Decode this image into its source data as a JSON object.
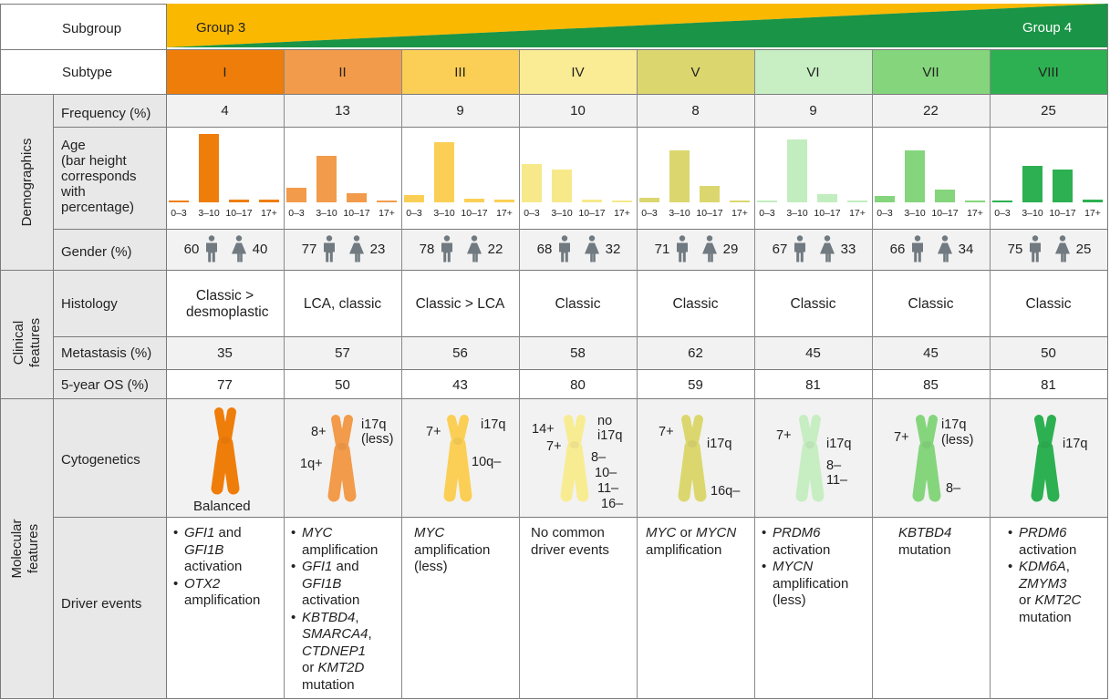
{
  "header": {
    "subgroup_label": "Subgroup",
    "subtype_label": "Subtype",
    "group_left": "Group 3",
    "group_right": "Group 4"
  },
  "subtypes": [
    "I",
    "II",
    "III",
    "IV",
    "V",
    "VI",
    "VII",
    "VIII"
  ],
  "subtype_colors": [
    "#ef7d0a",
    "#f29b4a",
    "#fbcf55",
    "#faeb95",
    "#dbd76e",
    "#c8efc4",
    "#85d57c",
    "#2db051"
  ],
  "group_colors": {
    "group3": "#fbb800",
    "group4": "#1a9446"
  },
  "sections": {
    "demographics": "Demographics",
    "clinical": "Clinical features",
    "molecular": "Molecular features"
  },
  "row_labels": {
    "frequency": "Frequency (%)",
    "age": "Age (bar height corresponds with percentage)",
    "gender": "Gender (%)",
    "histology": "Histology",
    "metastasis": "Metastasis (%)",
    "os": "5-year OS (%)",
    "cytogenetics": "Cytogenetics",
    "driver": "Driver events"
  },
  "frequency": [
    "4",
    "13",
    "9",
    "10",
    "8",
    "9",
    "22",
    "25"
  ],
  "age_bins": [
    "0–3",
    "3–10",
    "10–17",
    "17+"
  ],
  "chart_data": {
    "type": "bar",
    "title": "Age (bar height corresponds with percentage)",
    "categories": [
      "0–3",
      "3–10",
      "10–17",
      "17+"
    ],
    "series": [
      {
        "name": "I",
        "values": [
          2,
          88,
          4,
          4
        ]
      },
      {
        "name": "II",
        "values": [
          19,
          60,
          12,
          2
        ]
      },
      {
        "name": "III",
        "values": [
          9,
          78,
          5,
          3
        ]
      },
      {
        "name": "IV",
        "values": [
          49,
          42,
          3,
          2
        ]
      },
      {
        "name": "V",
        "values": [
          6,
          67,
          21,
          2
        ]
      },
      {
        "name": "VI",
        "values": [
          2,
          81,
          10,
          2
        ]
      },
      {
        "name": "VII",
        "values": [
          8,
          67,
          16,
          2
        ]
      },
      {
        "name": "VIII",
        "values": [
          2,
          47,
          42,
          4
        ]
      }
    ]
  },
  "gender": [
    {
      "male": "60",
      "female": "40"
    },
    {
      "male": "77",
      "female": "23"
    },
    {
      "male": "78",
      "female": "22"
    },
    {
      "male": "68",
      "female": "32"
    },
    {
      "male": "71",
      "female": "29"
    },
    {
      "male": "67",
      "female": "33"
    },
    {
      "male": "66",
      "female": "34"
    },
    {
      "male": "75",
      "female": "25"
    }
  ],
  "histology": [
    "Classic > desmoplastic",
    "LCA, classic",
    "Classic > LCA",
    "Classic",
    "Classic",
    "Classic",
    "Classic",
    "Classic"
  ],
  "metastasis": [
    "35",
    "57",
    "56",
    "58",
    "62",
    "45",
    "45",
    "50"
  ],
  "os": [
    "77",
    "50",
    "43",
    "80",
    "59",
    "81",
    "85",
    "81"
  ],
  "cytogenetics": {
    "I": {
      "balanced": "Balanced"
    },
    "II": {
      "a": "8+",
      "b": "1q+",
      "c": "i17q",
      "d": "(less)"
    },
    "III": {
      "a": "7+",
      "b": "i17q",
      "c": "10q–"
    },
    "IV": {
      "a": "14+",
      "b": "7+",
      "c": "no",
      "d": "i17q",
      "e": "8–",
      "f": "10–",
      "g": "11–",
      "h": "16–"
    },
    "V": {
      "a": "7+",
      "b": "i17q",
      "c": "16q–"
    },
    "VI": {
      "a": "7+",
      "b": "i17q",
      "c": "8–",
      "d": "11–"
    },
    "VII": {
      "a": "7+",
      "b": "i17q",
      "c": "(less)",
      "d": "8–"
    },
    "VIII": {
      "a": "i17q"
    }
  },
  "drivers": {
    "I": {
      "b1_i": "GFI1",
      "b1_r": " and",
      "b1_l2": "GFI1B",
      "b1_l3": "activation",
      "b2_i": "OTX2",
      "b2_l2": "amplification"
    },
    "II": {
      "b1_i": "MYC",
      "b1_l2": "amplification",
      "b2_i": "GFI1",
      "b2_r": " and",
      "b2_l2": "GFI1B",
      "b2_l3": "activation",
      "b3_i": "KBTBD4",
      "b3_r": ",",
      "b3_l2": "SMARCA4",
      "b3_l2r": ",",
      "b3_l3": "CTDNEP1",
      "b3_l4a": "or ",
      "b3_l4b": "KMT2D",
      "b3_l5": "mutation"
    },
    "III": {
      "l1": "MYC",
      "l2": "amplification",
      "l3": "(less)"
    },
    "IV": {
      "l1": "No common",
      "l2": "driver events"
    },
    "V": {
      "l1a": "MYC",
      "l1b": " or ",
      "l1c": "MYCN",
      "l2": "amplification"
    },
    "VI": {
      "b1_i": "PRDM6",
      "b1_l2": "activation",
      "b2_i": "MYCN",
      "b2_l2": "amplification",
      "b2_l3": "(less)"
    },
    "VII": {
      "l1": "KBTBD4",
      "l2": "mutation"
    },
    "VIII": {
      "b1_i": "PRDM6",
      "b1_l2": "activation",
      "b2_i": "KDM6A",
      "b2_r": ",",
      "b2_l2": "ZMYM3",
      "b2_l3a": "or ",
      "b2_l3b": "KMT2C",
      "b2_l4": "mutation"
    }
  }
}
